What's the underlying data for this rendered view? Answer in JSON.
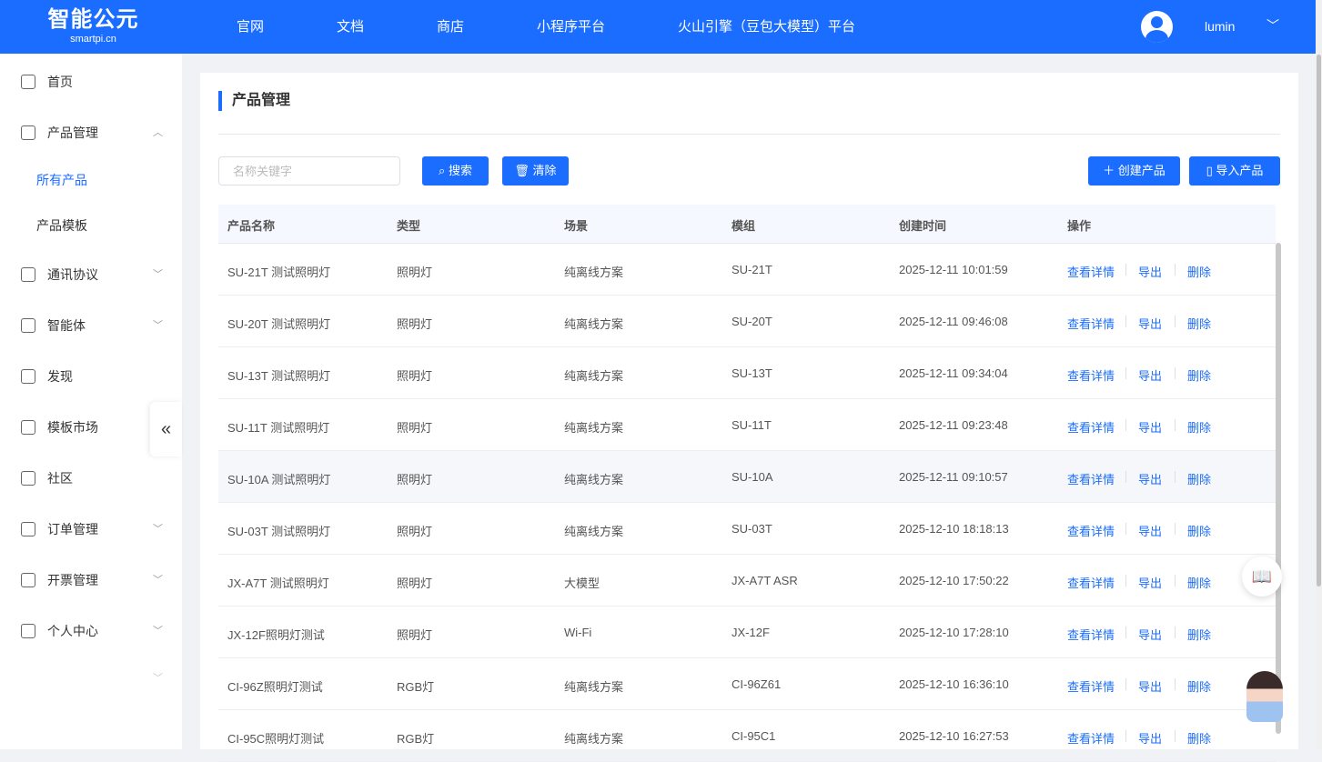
{
  "header": {
    "logo_text": "智能公元",
    "logo_sub": "smartpi.cn",
    "nav": [
      "官网",
      "文档",
      "商店",
      "小程序平台",
      "火山引擎（豆包大模型）平台"
    ],
    "user": "lumin"
  },
  "sidebar": {
    "items": [
      {
        "label": "首页",
        "icon": "home-icon"
      },
      {
        "label": "产品管理",
        "icon": "layers-icon",
        "expanded": true,
        "children": [
          "所有产品",
          "产品模板"
        ],
        "active_child": "所有产品"
      },
      {
        "label": "通讯协议",
        "icon": "protocol-icon"
      },
      {
        "label": "智能体",
        "icon": "monitor-icon"
      },
      {
        "label": "发现",
        "icon": "compass-icon"
      },
      {
        "label": "模板市场",
        "icon": "template-icon"
      },
      {
        "label": "社区",
        "icon": "smile-icon"
      },
      {
        "label": "订单管理",
        "icon": "order-icon"
      },
      {
        "label": "开票管理",
        "icon": "invoice-icon"
      },
      {
        "label": "个人中心",
        "icon": "user-icon"
      }
    ],
    "collapse": "«"
  },
  "page": {
    "title": "产品管理",
    "search_placeholder": "名称关键字",
    "search_btn": "搜索",
    "clear_btn": "清除",
    "create_btn": "创建产品",
    "import_btn": "导入产品"
  },
  "table": {
    "columns": [
      "产品名称",
      "类型",
      "场景",
      "模组",
      "创建时间",
      "操作"
    ],
    "actions": [
      "查看详情",
      "导出",
      "删除"
    ],
    "rows": [
      [
        "SU-21T 测试照明灯",
        "照明灯",
        "纯离线方案",
        "SU-21T",
        "2025-12-11 10:01:59"
      ],
      [
        "SU-20T 测试照明灯",
        "照明灯",
        "纯离线方案",
        "SU-20T",
        "2025-12-11 09:46:08"
      ],
      [
        "SU-13T 测试照明灯",
        "照明灯",
        "纯离线方案",
        "SU-13T",
        "2025-12-11 09:34:04"
      ],
      [
        "SU-11T 测试照明灯",
        "照明灯",
        "纯离线方案",
        "SU-11T",
        "2025-12-11 09:23:48"
      ],
      [
        "SU-10A 测试照明灯",
        "照明灯",
        "纯离线方案",
        "SU-10A",
        "2025-12-11 09:10:57"
      ],
      [
        "SU-03T 测试照明灯",
        "照明灯",
        "纯离线方案",
        "SU-03T",
        "2025-12-10 18:18:13"
      ],
      [
        "JX-A7T 测试照明灯",
        "照明灯",
        "大模型",
        "JX-A7T ASR",
        "2025-12-10 17:50:22"
      ],
      [
        "JX-12F照明灯测试",
        "照明灯",
        "Wi-Fi",
        "JX-12F",
        "2025-12-10 17:28:10"
      ],
      [
        "CI-96Z照明灯测试",
        "RGB灯",
        "纯离线方案",
        "CI-96Z61",
        "2025-12-10 16:36:10"
      ],
      [
        "CI-95C照明灯测试",
        "RGB灯",
        "纯离线方案",
        "CI-95C1",
        "2025-12-10 16:27:53"
      ]
    ]
  },
  "colors": {
    "primary": "#1a6dff"
  }
}
